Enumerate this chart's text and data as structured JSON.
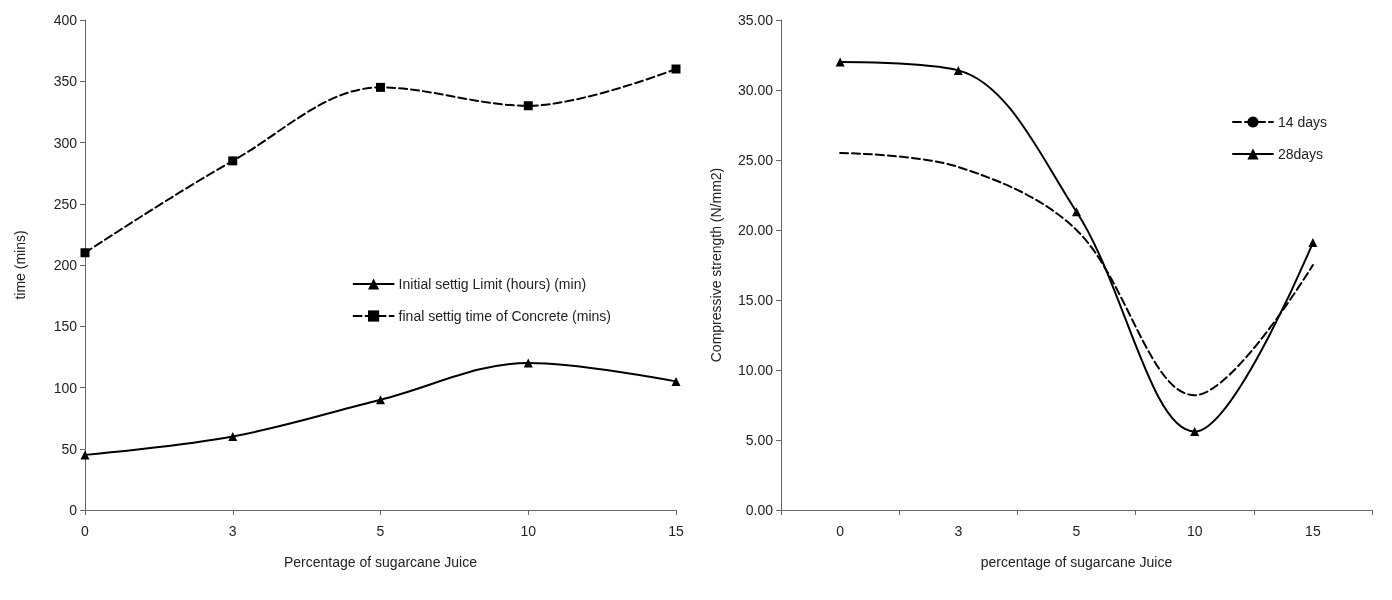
{
  "chart_data": [
    {
      "type": "line",
      "xlabel": "Percentage of sugarcane Juice",
      "ylabel": "time (mins)",
      "categories": [
        "0",
        "3",
        "5",
        "10",
        "15"
      ],
      "ylim": [
        0,
        400
      ],
      "yticks": [
        0,
        50,
        100,
        150,
        200,
        250,
        300,
        350,
        400
      ],
      "grid": false,
      "legend": "right",
      "series": [
        {
          "name": "Initial settig Limit (hours) (min)",
          "color": "#000000",
          "values": [
            45,
            60,
            90,
            120,
            105
          ],
          "marker": "triangle",
          "line_style": "solid"
        },
        {
          "name": "final settig time of Concrete (mins)",
          "color": "#000000",
          "values": [
            210,
            285,
            345,
            330,
            360
          ],
          "marker": "square",
          "line_style": "dashed"
        }
      ]
    },
    {
      "type": "line",
      "xlabel": "percentage of sugarcane Juice",
      "ylabel": "Compressive strength (N/mm2)",
      "categories": [
        "0",
        "3",
        "5",
        "10",
        "15"
      ],
      "ylim": [
        0,
        35
      ],
      "yticks": [
        {
          "value": 0,
          "label": "0.00"
        },
        {
          "value": 5,
          "label": "5.00"
        },
        {
          "value": 10,
          "label": "10.00"
        },
        {
          "value": 15,
          "label": "15.00"
        },
        {
          "value": 20,
          "label": "20.00"
        },
        {
          "value": 25,
          "label": "25.00"
        },
        {
          "value": 30,
          "label": "30.00"
        },
        {
          "value": 35,
          "label": "35.00"
        }
      ],
      "grid": false,
      "legend": "top right",
      "series": [
        {
          "name": "14 days",
          "color": "#000000",
          "values": [
            25.5,
            24.5,
            20,
            8.2,
            17.5
          ],
          "marker": "none",
          "line_style": "dashed"
        },
        {
          "name": "28days",
          "color": "#000000",
          "values": [
            32,
            31.4,
            21.3,
            5.6,
            19.1
          ],
          "marker": "triangle",
          "line_style": "solid"
        }
      ]
    }
  ]
}
